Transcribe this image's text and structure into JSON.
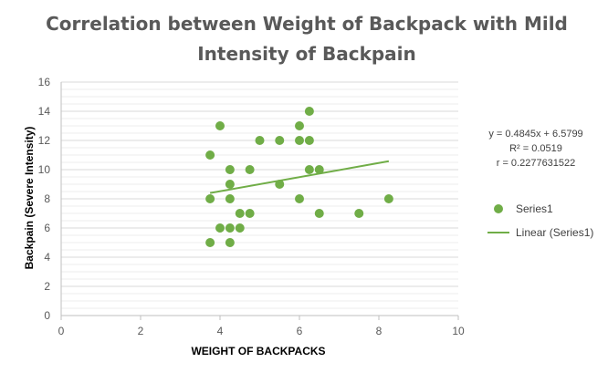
{
  "chart_data": {
    "type": "scatter",
    "title_lines": [
      "Correlation between Weight of Backpack with Mild",
      "Intensity of Backpain"
    ],
    "xlabel": "WEIGHT OF BACKPACKS",
    "ylabel": "Backpain (Severe Intensity)",
    "xlim": [
      0,
      10
    ],
    "ylim": [
      0,
      16
    ],
    "x_ticks": [
      0,
      2,
      4,
      6,
      8,
      10
    ],
    "y_ticks": [
      0,
      2,
      4,
      6,
      8,
      10,
      12,
      14,
      16
    ],
    "grid": true,
    "legend_position": "right",
    "series": [
      {
        "name": "Series1",
        "color": "#70ad47",
        "points": [
          [
            3.75,
            11
          ],
          [
            4.0,
            13
          ],
          [
            3.75,
            8
          ],
          [
            4.25,
            10
          ],
          [
            4.25,
            9
          ],
          [
            4.25,
            8
          ],
          [
            4.5,
            7
          ],
          [
            4.75,
            7
          ],
          [
            4.25,
            6
          ],
          [
            4.5,
            6
          ],
          [
            4.0,
            6
          ],
          [
            3.75,
            5
          ],
          [
            4.25,
            5
          ],
          [
            4.75,
            10
          ],
          [
            5.0,
            12
          ],
          [
            5.5,
            12
          ],
          [
            5.5,
            9
          ],
          [
            6.0,
            12
          ],
          [
            6.0,
            13
          ],
          [
            6.25,
            14
          ],
          [
            6.25,
            12
          ],
          [
            6.25,
            10
          ],
          [
            6.5,
            10
          ],
          [
            6.0,
            8
          ],
          [
            6.5,
            7
          ],
          [
            7.5,
            7
          ],
          [
            8.25,
            8
          ]
        ]
      }
    ],
    "trendline": {
      "name": "Linear (Series1)",
      "color": "#70ad47",
      "slope": 0.4845,
      "intercept": 6.5799,
      "x_range": [
        3.75,
        8.25
      ],
      "equation_text": [
        "y = 0.4845x + 6.5799",
        "R² = 0.0519",
        "r = 0.2277631522"
      ]
    }
  }
}
